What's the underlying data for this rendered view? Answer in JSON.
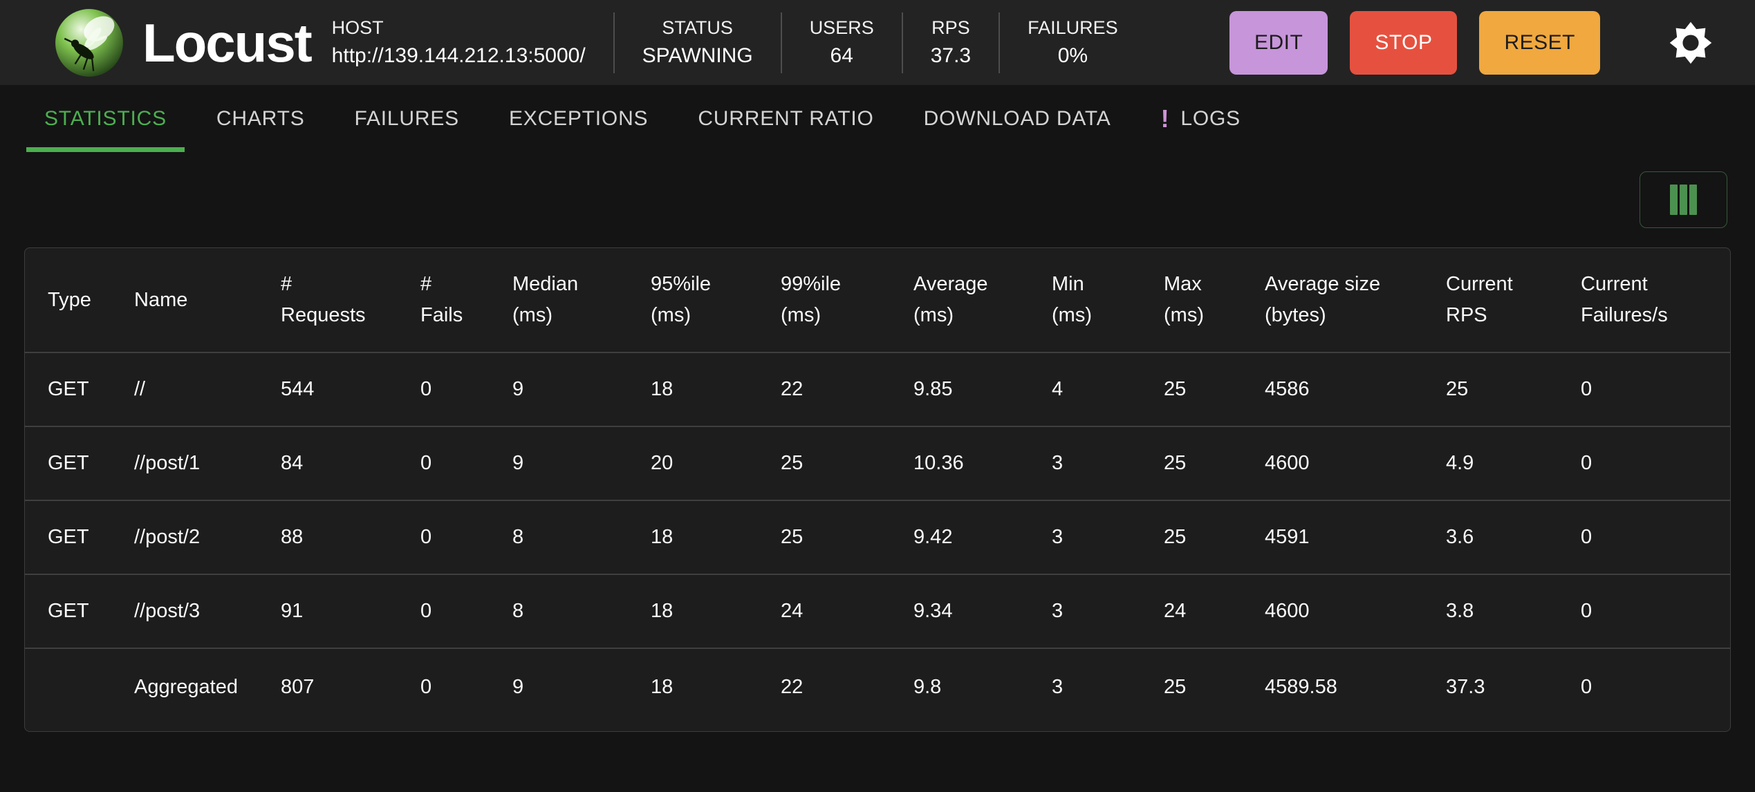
{
  "brand": "Locust",
  "host": {
    "label": "HOST",
    "value": "http://139.144.212.13:5000/"
  },
  "stats": {
    "status": {
      "label": "STATUS",
      "value": "SPAWNING"
    },
    "users": {
      "label": "USERS",
      "value": "64"
    },
    "rps": {
      "label": "RPS",
      "value": "37.3"
    },
    "failures": {
      "label": "FAILURES",
      "value": "0%"
    }
  },
  "actions": {
    "edit": "EDIT",
    "stop": "STOP",
    "reset": "RESET"
  },
  "icons": {
    "settings": "gear-icon",
    "column_selector": "columns-icon",
    "logo": "locust-logo"
  },
  "tabs": [
    {
      "label": "STATISTICS",
      "active": true
    },
    {
      "label": "CHARTS"
    },
    {
      "label": "FAILURES"
    },
    {
      "label": "EXCEPTIONS"
    },
    {
      "label": "CURRENT RATIO"
    },
    {
      "label": "DOWNLOAD DATA"
    },
    {
      "label": "LOGS",
      "badge": "!"
    }
  ],
  "table": {
    "headers": [
      "Type",
      "Name",
      "#\nRequests",
      "#\nFails",
      "Median\n(ms)",
      "95%ile\n(ms)",
      "99%ile\n(ms)",
      "Average\n(ms)",
      "Min\n(ms)",
      "Max\n(ms)",
      "Average size\n(bytes)",
      "Current\nRPS",
      "Current\nFailures/s"
    ],
    "rows": [
      [
        "GET",
        "//",
        "544",
        "0",
        "9",
        "18",
        "22",
        "9.85",
        "4",
        "25",
        "4586",
        "25",
        "0"
      ],
      [
        "GET",
        "//post/1",
        "84",
        "0",
        "9",
        "20",
        "25",
        "10.36",
        "3",
        "25",
        "4600",
        "4.9",
        "0"
      ],
      [
        "GET",
        "//post/2",
        "88",
        "0",
        "8",
        "18",
        "25",
        "9.42",
        "3",
        "25",
        "4591",
        "3.6",
        "0"
      ],
      [
        "GET",
        "//post/3",
        "91",
        "0",
        "8",
        "18",
        "24",
        "9.34",
        "3",
        "24",
        "4600",
        "3.8",
        "0"
      ],
      [
        "",
        "Aggregated",
        "807",
        "0",
        "9",
        "18",
        "22",
        "9.8",
        "3",
        "25",
        "4589.58",
        "37.3",
        "0"
      ]
    ]
  },
  "colors": {
    "accent": "#4caf50",
    "edit": "#c795da",
    "stop": "#e6513f",
    "reset": "#f0a83f",
    "badge": "#ce93d8",
    "colicon": "#4c9150"
  }
}
